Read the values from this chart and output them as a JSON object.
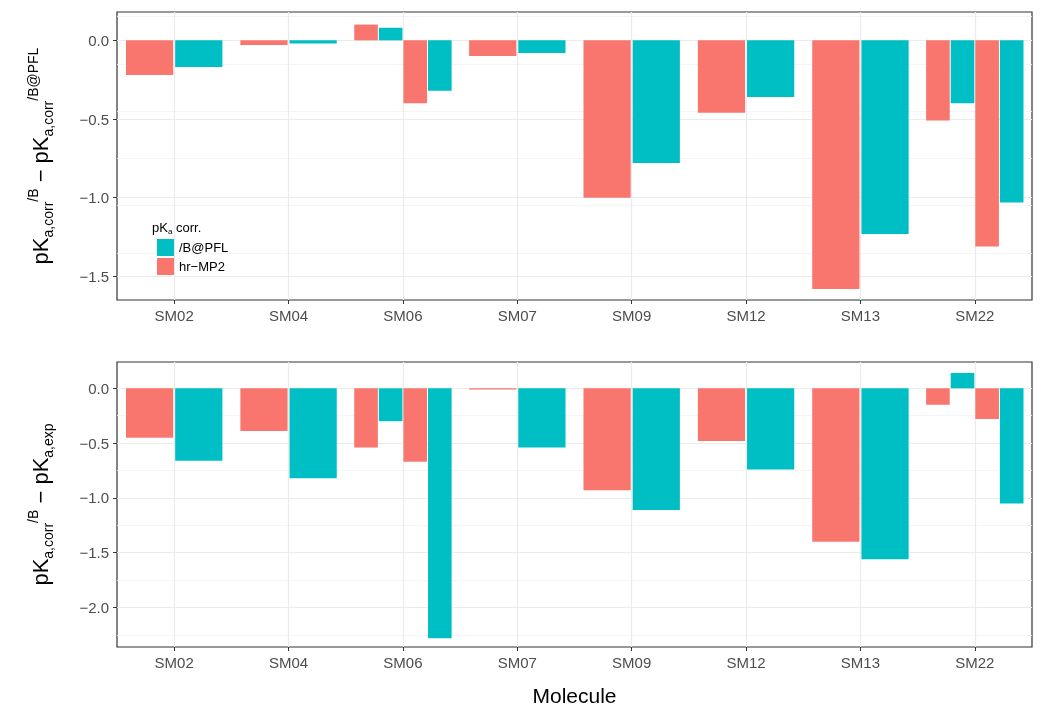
{
  "chart_data": [
    {
      "type": "bar",
      "ylabel": "pK$_{a,corr}$$^{/B}$ − pK$_{a,corr}$$^{/B@PFL}$",
      "legend_title": "pK$_{a}$ corr.",
      "legend": "bottom left",
      "grid": true,
      "categories": [
        "SM02",
        "SM04",
        "SM06",
        "SM07",
        "SM09",
        "SM12",
        "SM13",
        "SM22"
      ],
      "ylim": [
        -1.65,
        0.18
      ],
      "yticks": [
        {
          "value": -1.5,
          "label": "−1.5"
        },
        {
          "value": -1,
          "label": "−1.0"
        },
        {
          "value": -0.5,
          "label": "−0.5"
        },
        {
          "value": 0,
          "label": "0.0"
        }
      ],
      "series": [
        {
          "name": "hr−MP2",
          "color": "#f8766d",
          "values": [
            -0.22,
            -0.03,
            0.1,
            -0.1,
            -1.0,
            -0.46,
            -1.58,
            -0.51
          ]
        },
        {
          "name": "/B@PFL",
          "color": "#00bfc4",
          "values": [
            -0.17,
            -0.02,
            0.08,
            -0.08,
            -0.78,
            -0.36,
            -1.23,
            -0.4
          ]
        },
        {
          "color": "#f8766d",
          "values": [
            null,
            null,
            -0.4,
            null,
            null,
            null,
            null,
            -1.31
          ]
        },
        {
          "color": "#00bfc4",
          "values": [
            null,
            null,
            -0.32,
            null,
            null,
            null,
            null,
            -1.03
          ]
        }
      ]
    },
    {
      "type": "bar",
      "ylabel": "pK$_{a,corr}$$^{/B}$ − pK$_{a,exp}$",
      "xlabel": "Molecule",
      "grid": true,
      "categories": [
        "SM02",
        "SM04",
        "SM06",
        "SM07",
        "SM09",
        "SM12",
        "SM13",
        "SM22"
      ],
      "ylim": [
        -2.36,
        0.24
      ],
      "yticks": [
        {
          "value": -2,
          "label": "−2.0"
        },
        {
          "value": -1.5,
          "label": "−1.5"
        },
        {
          "value": -1,
          "label": "−1.0"
        },
        {
          "value": -0.5,
          "label": "−0.5"
        },
        {
          "value": 0,
          "label": "0.0"
        }
      ],
      "series": [
        {
          "color": "#f8766d",
          "values": [
            -0.45,
            -0.39,
            -0.54,
            -0.01,
            -0.93,
            -0.48,
            -1.4,
            -0.15
          ]
        },
        {
          "color": "#00bfc4",
          "values": [
            -0.66,
            -0.82,
            -0.3,
            -0.54,
            -1.11,
            -0.74,
            -1.56,
            0.14
          ]
        },
        {
          "color": "#f8766d",
          "values": [
            null,
            null,
            -0.67,
            null,
            null,
            null,
            null,
            -0.28
          ]
        },
        {
          "color": "#00bfc4",
          "values": [
            null,
            null,
            -2.28,
            null,
            null,
            null,
            null,
            -1.05
          ]
        }
      ]
    }
  ]
}
